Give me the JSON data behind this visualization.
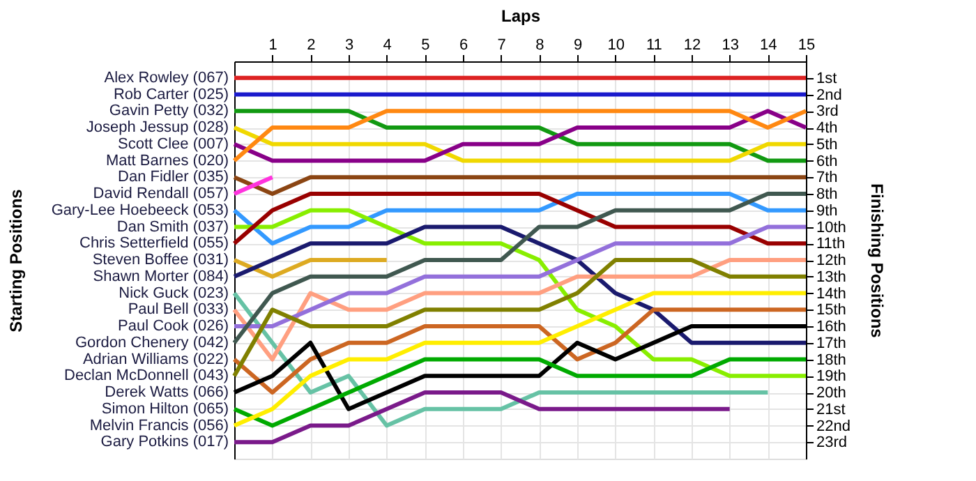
{
  "chart_data": {
    "type": "line",
    "xlabel": "Laps",
    "legend_title": "Starting Positions",
    "ylabel": "Finishing Positions",
    "x": [
      0,
      1,
      2,
      3,
      4,
      5,
      6,
      7,
      8,
      9,
      10,
      11,
      12,
      13,
      14,
      15
    ],
    "xlim": [
      0,
      15
    ],
    "xticks": [
      1,
      2,
      3,
      4,
      5,
      6,
      7,
      8,
      9,
      10,
      11,
      12,
      13,
      14,
      15
    ],
    "ylim": [
      24,
      0
    ],
    "yticks": [
      {
        "value": 1,
        "label": "1st"
      },
      {
        "value": 2,
        "label": "2nd"
      },
      {
        "value": 3,
        "label": "3rd"
      },
      {
        "value": 4,
        "label": "4th"
      },
      {
        "value": 5,
        "label": "5th"
      },
      {
        "value": 6,
        "label": "6th"
      },
      {
        "value": 7,
        "label": "7th"
      },
      {
        "value": 8,
        "label": "8th"
      },
      {
        "value": 9,
        "label": "9th"
      },
      {
        "value": 10,
        "label": "10th"
      },
      {
        "value": 11,
        "label": "11th"
      },
      {
        "value": 12,
        "label": "12th"
      },
      {
        "value": 13,
        "label": "13th"
      },
      {
        "value": 14,
        "label": "14th"
      },
      {
        "value": 15,
        "label": "15th"
      },
      {
        "value": 16,
        "label": "16th"
      },
      {
        "value": 17,
        "label": "17th"
      },
      {
        "value": 18,
        "label": "18th"
      },
      {
        "value": 19,
        "label": "19th"
      },
      {
        "value": 20,
        "label": "20th"
      },
      {
        "value": 21,
        "label": "21st"
      },
      {
        "value": 22,
        "label": "22nd"
      },
      {
        "value": 23,
        "label": "23rd"
      }
    ],
    "grid": true,
    "legend": false,
    "marker": "none",
    "line_style": "solid",
    "series": [
      {
        "name": "Alex Rowley (067)",
        "color": "#dd2222",
        "values": [
          1,
          1,
          1,
          1,
          1,
          1,
          1,
          1,
          1,
          1,
          1,
          1,
          1,
          1,
          1,
          1
        ]
      },
      {
        "name": "Rob Carter (025)",
        "color": "#1a1acc",
        "values": [
          2,
          2,
          2,
          2,
          2,
          2,
          2,
          2,
          2,
          2,
          2,
          2,
          2,
          2,
          2,
          2
        ]
      },
      {
        "name": "Gavin Petty (032)",
        "color": "#119911",
        "values": [
          3,
          3,
          3,
          3,
          4,
          4,
          4,
          4,
          4,
          5,
          5,
          5,
          5,
          5,
          6,
          6
        ]
      },
      {
        "name": "Joseph Jessup (028)",
        "color": "#f0d800",
        "values": [
          4,
          5,
          5,
          5,
          5,
          5,
          6,
          6,
          6,
          6,
          6,
          6,
          6,
          6,
          5,
          5
        ]
      },
      {
        "name": "Scott Clee (007)",
        "color": "#880088",
        "values": [
          5,
          6,
          6,
          6,
          6,
          6,
          5,
          5,
          5,
          4,
          4,
          4,
          4,
          4,
          3,
          4
        ]
      },
      {
        "name": "Matt Barnes (020)",
        "color": "#ff8811",
        "values": [
          6,
          4,
          4,
          4,
          3,
          3,
          3,
          3,
          3,
          3,
          3,
          3,
          3,
          3,
          4,
          3
        ]
      },
      {
        "name": "Dan Fidler (035)",
        "color": "#8b4513",
        "values": [
          7,
          8,
          7,
          7,
          7,
          7,
          7,
          7,
          7,
          7,
          7,
          7,
          7,
          7,
          7,
          7
        ]
      },
      {
        "name": "David Rendall (057)",
        "color": "#ff33dd",
        "values": [
          8,
          7,
          null,
          null,
          null,
          null,
          null,
          null,
          null,
          null,
          null,
          null,
          null,
          null,
          null,
          null
        ]
      },
      {
        "name": "Gary-Lee Hoebeeck (053)",
        "color": "#3399ff",
        "values": [
          9,
          11,
          10,
          10,
          9,
          9,
          9,
          9,
          9,
          8,
          8,
          8,
          8,
          8,
          9,
          9
        ]
      },
      {
        "name": "Dan Smith (037)",
        "color": "#88ee00",
        "values": [
          10,
          10,
          9,
          9,
          10,
          11,
          11,
          11,
          12,
          15,
          16,
          18,
          18,
          19,
          19,
          19
        ]
      },
      {
        "name": "Chris Setterfield (055)",
        "color": "#990000",
        "values": [
          11,
          9,
          8,
          8,
          8,
          8,
          8,
          8,
          8,
          9,
          10,
          10,
          10,
          10,
          11,
          11
        ]
      },
      {
        "name": "Steven Boffee (031)",
        "color": "#ddaa22",
        "values": [
          12,
          13,
          12,
          12,
          12,
          null,
          null,
          null,
          null,
          null,
          null,
          null,
          null,
          null,
          null,
          null
        ]
      },
      {
        "name": "Shawn Morter (084)",
        "color": "#1a1a6e",
        "values": [
          13,
          12,
          11,
          11,
          11,
          10,
          10,
          10,
          11,
          12,
          14,
          15,
          17,
          17,
          17,
          17
        ]
      },
      {
        "name": "Nick Guck (023)",
        "color": "#66c2a5",
        "values": [
          14,
          17,
          20,
          19,
          22,
          21,
          21,
          21,
          20,
          20,
          20,
          20,
          20,
          20,
          20,
          null
        ]
      },
      {
        "name": "Paul Bell (033)",
        "color": "#ff9f80",
        "values": [
          15,
          18,
          14,
          15,
          15,
          14,
          14,
          14,
          14,
          13,
          13,
          13,
          13,
          12,
          12,
          12
        ]
      },
      {
        "name": "Paul Cook (026)",
        "color": "#9370db",
        "values": [
          16,
          16,
          15,
          14,
          14,
          13,
          13,
          13,
          13,
          12,
          11,
          11,
          11,
          11,
          10,
          10
        ]
      },
      {
        "name": "Gordon Chenery (042)",
        "color": "#405850",
        "values": [
          17,
          14,
          13,
          13,
          13,
          12,
          12,
          12,
          10,
          10,
          9,
          9,
          9,
          9,
          8,
          8
        ]
      },
      {
        "name": "Adrian Williams (022)",
        "color": "#cc6622",
        "values": [
          18,
          20,
          18,
          17,
          17,
          16,
          16,
          16,
          16,
          18,
          17,
          15,
          15,
          15,
          15,
          15
        ]
      },
      {
        "name": "Declan McDonnell (043)",
        "color": "#808000",
        "values": [
          19,
          15,
          16,
          16,
          16,
          15,
          15,
          15,
          15,
          14,
          12,
          12,
          12,
          13,
          13,
          13
        ]
      },
      {
        "name": "Derek Watts (066)",
        "color": "#000000",
        "values": [
          20,
          19,
          17,
          21,
          20,
          19,
          19,
          19,
          19,
          17,
          18,
          17,
          16,
          16,
          16,
          16
        ]
      },
      {
        "name": "Simon Hilton (065)",
        "color": "#00aa00",
        "values": [
          21,
          22,
          21,
          20,
          19,
          18,
          18,
          18,
          18,
          19,
          19,
          19,
          19,
          18,
          18,
          18
        ]
      },
      {
        "name": "Melvin Francis (056)",
        "color": "#ffee00",
        "values": [
          22,
          21,
          19,
          18,
          18,
          17,
          17,
          17,
          17,
          16,
          15,
          14,
          14,
          14,
          14,
          14
        ]
      },
      {
        "name": "Gary Potkins (017)",
        "color": "#7a1a8a",
        "values": [
          23,
          23,
          22,
          22,
          21,
          20,
          20,
          20,
          21,
          21,
          21,
          21,
          21,
          21,
          null,
          null
        ]
      }
    ]
  }
}
